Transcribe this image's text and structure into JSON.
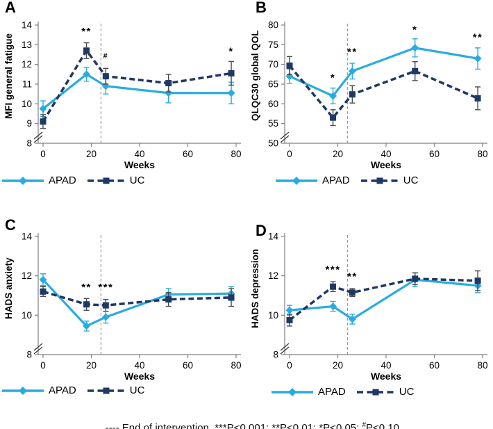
{
  "colors": {
    "apad": "#29ABE2",
    "uc": "#1F3864",
    "uc_err": "#4a4a4a",
    "vline": "#9a9a9a",
    "axis": "#808080"
  },
  "footer": {
    "main": "---- End of intervention. ***P<0.001; **P<0.01; *P<0.05; ",
    "hash": "#",
    "tail": "P<0.10"
  },
  "chart_data": [
    {
      "type": "line",
      "letter": "A",
      "ylabel": "MFI general fatigue",
      "xlabel": "Weeks",
      "x": [
        0,
        18,
        26,
        52,
        78
      ],
      "xlim": [
        0,
        80
      ],
      "xticks": [
        0,
        20,
        40,
        60,
        80
      ],
      "ylim": [
        8,
        14
      ],
      "yticks": [
        8,
        9,
        10,
        11,
        12,
        13,
        14
      ],
      "axis_break": true,
      "vline_x": 24,
      "legend_position": "bottom-left",
      "series": [
        {
          "name": "APAD",
          "marker": "diamond",
          "line_style": "solid",
          "color_key": "apad",
          "err_color_key": "apad",
          "values": [
            9.75,
            11.5,
            10.9,
            10.55,
            10.55
          ],
          "errors": [
            0.4,
            0.35,
            0.4,
            0.5,
            0.55
          ]
        },
        {
          "name": "UC",
          "marker": "square",
          "line_style": "dashed",
          "color_key": "uc",
          "err_color_key": "uc_err",
          "values": [
            9.1,
            12.7,
            11.4,
            11.05,
            11.55
          ],
          "errors": [
            0.35,
            0.4,
            0.4,
            0.45,
            0.6
          ]
        }
      ],
      "annotations": [
        {
          "week": 18,
          "value": 13.5,
          "text": "**"
        },
        {
          "week": 26,
          "value": 12.3,
          "text": "#",
          "small": true
        },
        {
          "week": 78,
          "value": 12.5,
          "text": "*"
        }
      ]
    },
    {
      "type": "line",
      "letter": "B",
      "ylabel": "QLQC30 global QOL",
      "xlabel": "Weeks",
      "x": [
        0,
        18,
        26,
        52,
        78
      ],
      "xlim": [
        0,
        80
      ],
      "xticks": [
        0,
        20,
        40,
        60,
        80
      ],
      "ylim": [
        50,
        80
      ],
      "yticks": [
        50,
        55,
        60,
        65,
        70,
        75,
        80
      ],
      "axis_break": true,
      "vline_x": 24,
      "legend_position": "bottom-center",
      "series": [
        {
          "name": "APAD",
          "marker": "diamond",
          "line_style": "solid",
          "color_key": "apad",
          "err_color_key": "apad",
          "values": [
            67,
            62,
            68.3,
            74.2,
            71.5
          ],
          "errors": [
            1.8,
            2,
            2,
            2.3,
            2.7
          ]
        },
        {
          "name": "UC",
          "marker": "square",
          "line_style": "dashed",
          "color_key": "uc",
          "err_color_key": "uc_err",
          "values": [
            69.7,
            56.5,
            62.4,
            68.3,
            61.4
          ],
          "errors": [
            2.3,
            2,
            2.2,
            2.4,
            2.9
          ]
        }
      ],
      "annotations": [
        {
          "week": 18,
          "value": 65.8,
          "text": "*"
        },
        {
          "week": 26,
          "value": 72.3,
          "text": "**"
        },
        {
          "week": 52,
          "value": 78,
          "text": "*"
        },
        {
          "week": 78,
          "value": 76,
          "text": "**"
        }
      ]
    },
    {
      "type": "line",
      "letter": "C",
      "ylabel": "HADS anxiety",
      "xlabel": "Weeks",
      "x": [
        0,
        18,
        26,
        52,
        78
      ],
      "xlim": [
        0,
        80
      ],
      "xticks": [
        0,
        20,
        40,
        60,
        80
      ],
      "ylim": [
        8,
        14
      ],
      "yticks": [
        8,
        10,
        12,
        14
      ],
      "axis_break": true,
      "vline_x": 24,
      "legend_position": "bottom-left",
      "series": [
        {
          "name": "APAD",
          "marker": "diamond",
          "line_style": "solid",
          "color_key": "apad",
          "err_color_key": "apad",
          "values": [
            11.8,
            9.45,
            9.9,
            11.05,
            11.1
          ],
          "errors": [
            0.3,
            0.25,
            0.3,
            0.3,
            0.35
          ]
        },
        {
          "name": "UC",
          "marker": "square",
          "line_style": "dashed",
          "color_key": "uc",
          "err_color_key": "uc_err",
          "values": [
            11.2,
            10.55,
            10.5,
            10.8,
            10.9
          ],
          "errors": [
            0.25,
            0.3,
            0.3,
            0.35,
            0.45
          ]
        }
      ],
      "annotations": [
        {
          "week": 18,
          "value": 11.25,
          "text": "**"
        },
        {
          "week": 26,
          "value": 11.25,
          "text": "***"
        }
      ]
    },
    {
      "type": "line",
      "letter": "D",
      "ylabel": "HADS depression",
      "xlabel": "Weeks",
      "x": [
        0,
        18,
        26,
        52,
        78
      ],
      "xlim": [
        0,
        80
      ],
      "xticks": [
        0,
        20,
        40,
        60,
        80
      ],
      "ylim": [
        8,
        14
      ],
      "yticks": [
        8,
        10,
        12,
        14
      ],
      "axis_break": true,
      "vline_x": 24,
      "legend_position": "bottom-center",
      "series": [
        {
          "name": "APAD",
          "marker": "diamond",
          "line_style": "solid",
          "color_key": "apad",
          "err_color_key": "apad",
          "values": [
            10.25,
            10.45,
            9.8,
            11.8,
            11.5
          ],
          "errors": [
            0.25,
            0.25,
            0.25,
            0.35,
            0.35
          ]
        },
        {
          "name": "UC",
          "marker": "square",
          "line_style": "dashed",
          "color_key": "uc",
          "err_color_key": "uc_err",
          "values": [
            9.75,
            11.45,
            11.15,
            11.85,
            11.75
          ],
          "errors": [
            0.3,
            0.25,
            0.2,
            0.3,
            0.5
          ]
        }
      ],
      "annotations": [
        {
          "week": 18,
          "value": 12.15,
          "text": "***"
        },
        {
          "week": 26,
          "value": 11.8,
          "text": "**"
        }
      ]
    }
  ]
}
